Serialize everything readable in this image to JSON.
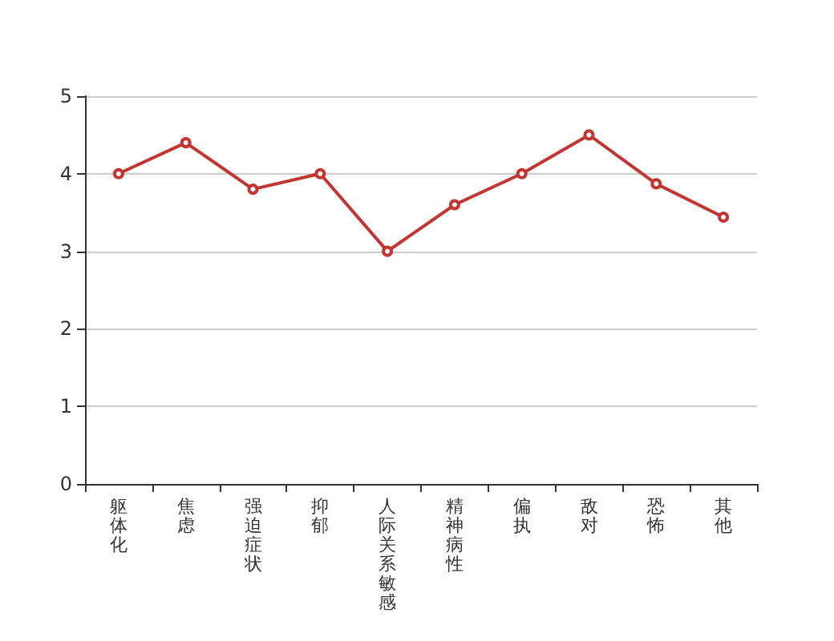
{
  "chart_data": {
    "type": "line",
    "categories": [
      "躯体化",
      "焦虑",
      "强迫症状",
      "抑郁",
      "人际关系敏感",
      "精神病性",
      "偏执",
      "敌对",
      "恐怖",
      "其他"
    ],
    "series": [
      {
        "color": "#c23531",
        "values": [
          4.0,
          4.4,
          3.8,
          4.0,
          3.0,
          3.6,
          4.0,
          4.5,
          3.87,
          3.44
        ]
      }
    ],
    "ylim": [
      0,
      5
    ],
    "yticks": [
      0,
      1,
      2,
      3,
      4,
      5
    ],
    "grid": "y",
    "marker": "circle",
    "line_style": "solid"
  }
}
